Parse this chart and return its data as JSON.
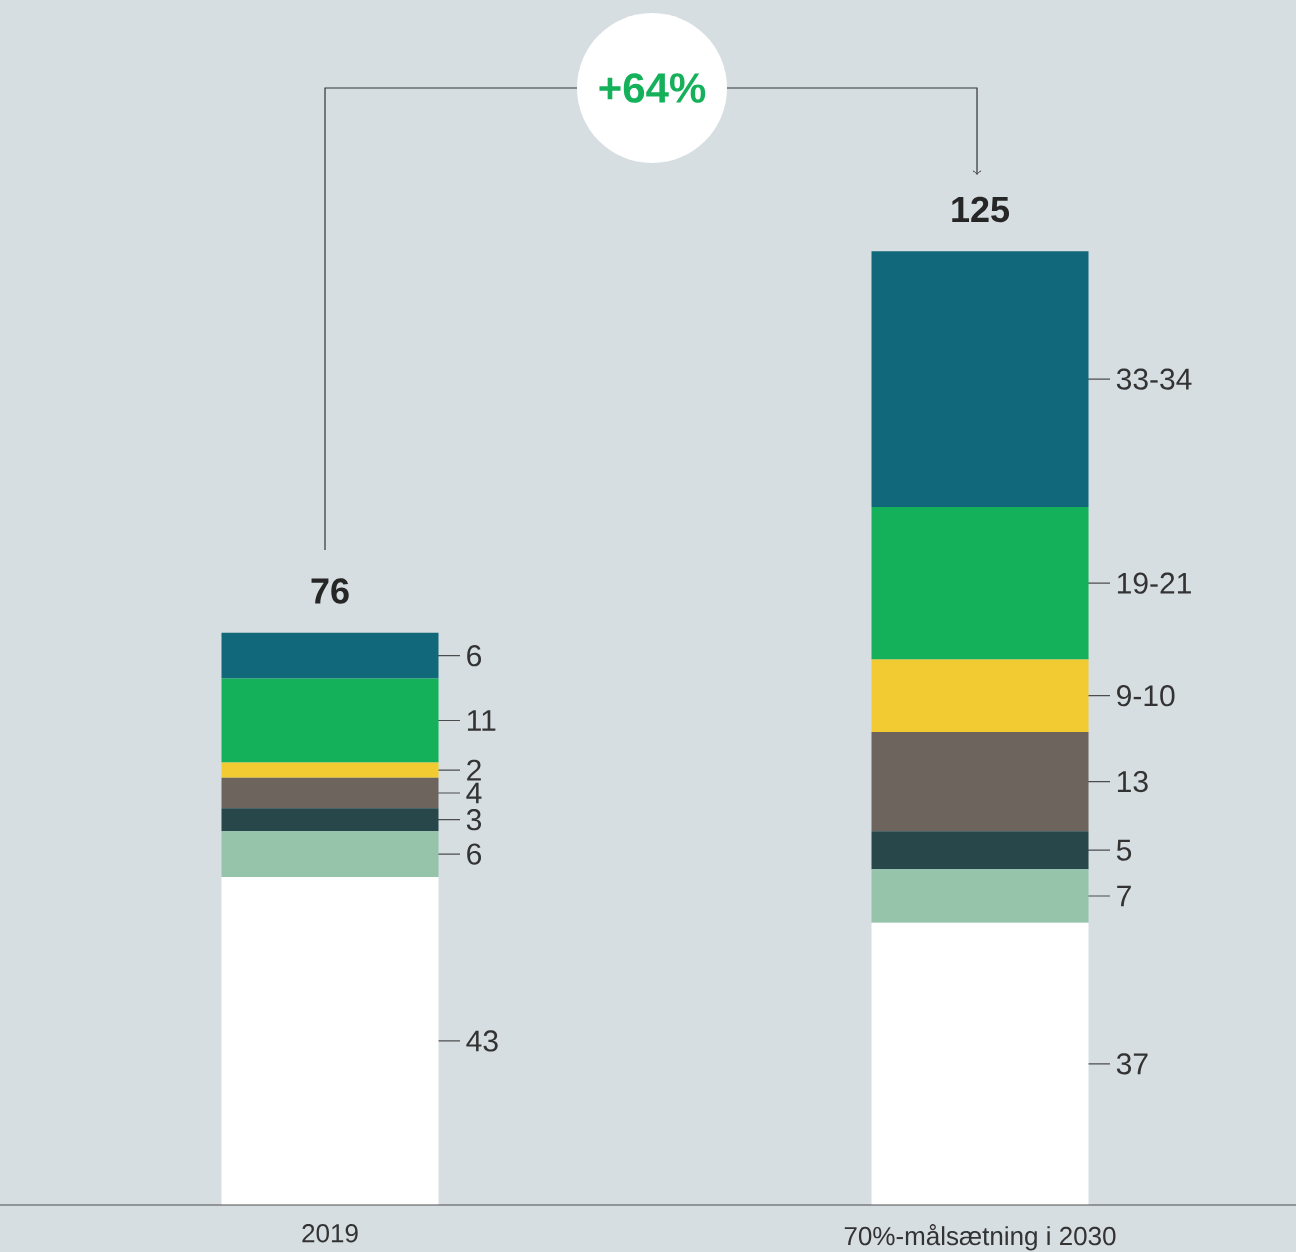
{
  "chart_data": {
    "type": "bar",
    "stacked": true,
    "categories": [
      "2019",
      "70%-målsætning i 2030"
    ],
    "series": [
      {
        "color": "#ffffff",
        "values": [
          43,
          37
        ],
        "value_labels": [
          "43",
          "37"
        ]
      },
      {
        "color": "#95c4ab",
        "values": [
          6,
          7
        ],
        "value_labels": [
          "6",
          "7"
        ]
      },
      {
        "color": "#27474b",
        "values": [
          3,
          5
        ],
        "value_labels": [
          "3",
          "5"
        ]
      },
      {
        "color": "#6d645e",
        "values": [
          4,
          13
        ],
        "value_labels": [
          "4",
          "13"
        ]
      },
      {
        "color": "#f2cb33",
        "values": [
          2,
          9.5
        ],
        "value_labels": [
          "2",
          "9-10"
        ]
      },
      {
        "color": "#15b05a",
        "values": [
          11,
          20
        ],
        "value_labels": [
          "11",
          "19-21"
        ]
      },
      {
        "color": "#10687a",
        "values": [
          6,
          33.5
        ],
        "value_labels": [
          "6",
          "33-34"
        ]
      }
    ],
    "totals": [
      "76",
      "125"
    ],
    "annotations": [
      "+64%"
    ]
  }
}
